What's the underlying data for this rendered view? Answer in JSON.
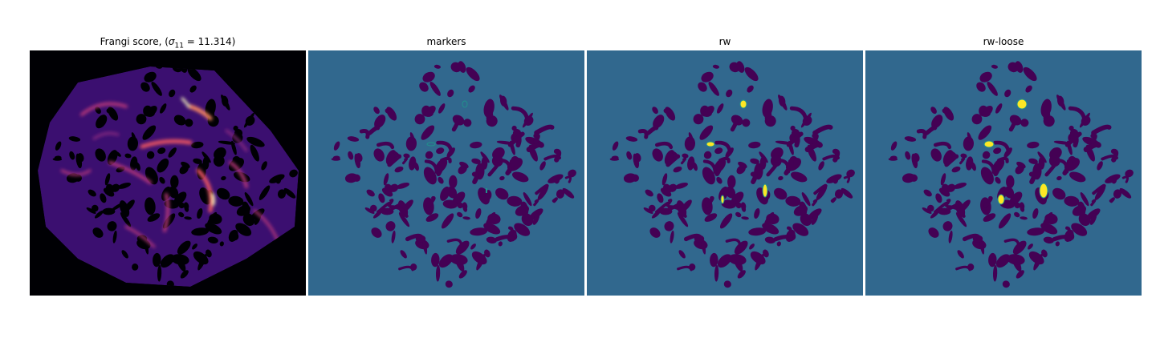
{
  "figure": {
    "panels": [
      {
        "id": "frangi",
        "title_prefix": "Frangi score, (",
        "title_sigma": "σ",
        "title_sub": "11",
        "title_suffix": " = 11.314)",
        "colormap": "magma"
      },
      {
        "id": "markers",
        "title": "markers",
        "colormap": "viridis"
      },
      {
        "id": "rw",
        "title": "rw",
        "colormap": "viridis"
      },
      {
        "id": "rw-loose",
        "title": "rw-loose",
        "colormap": "viridis"
      }
    ],
    "colors": {
      "magma_background": "#000004",
      "magma_mid": "#3b0f70",
      "magma_high": "#b73779",
      "magma_peak": "#fcfdbf",
      "viridis_background": "#31688e",
      "viridis_low": "#440154",
      "viridis_high": "#fde725",
      "viridis_edge": "#21918c"
    }
  }
}
